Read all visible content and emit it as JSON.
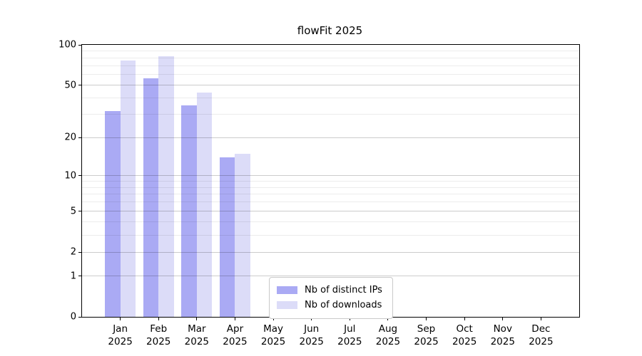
{
  "title": "flowFit 2025",
  "chart_data": {
    "type": "bar",
    "title": "flowFit 2025",
    "categories": [
      "Jan",
      "Feb",
      "Mar",
      "Apr",
      "May",
      "Jun",
      "Jul",
      "Aug",
      "Sep",
      "Oct",
      "Nov",
      "Dec"
    ],
    "x_year_label": "2025",
    "series": [
      {
        "name": "Nb of distinct IPs",
        "color": "#aaaaf4",
        "values": [
          32,
          56,
          35,
          14,
          0,
          0,
          0,
          0,
          0,
          0,
          0,
          0
        ]
      },
      {
        "name": "Nb of downloads",
        "color": "#dcdcf8",
        "values": [
          76,
          82,
          44,
          15,
          0,
          0,
          0,
          0,
          0,
          0,
          0,
          0
        ]
      }
    ],
    "y_scale": "log1p",
    "ylim": [
      0,
      100
    ],
    "y_major_ticks": [
      0,
      1,
      2,
      5,
      10,
      20,
      50,
      100
    ],
    "y_minor_gridlines": [
      3,
      4,
      6,
      7,
      8,
      9,
      30,
      40,
      60,
      70,
      80,
      90
    ],
    "grid": true,
    "legend_position": "inside bottom, left of center",
    "legend_entries": [
      "Nb of distinct IPs",
      "Nb of downloads"
    ]
  },
  "colors": {
    "bar_distinct_ips": "#aaaaf4",
    "bar_downloads": "#dcdcf8",
    "axis": "#000000",
    "grid_major": "#cccccc",
    "grid_minor": "#ececec",
    "legend_border": "#c9c9c9",
    "background": "#ffffff",
    "text": "#000000"
  }
}
